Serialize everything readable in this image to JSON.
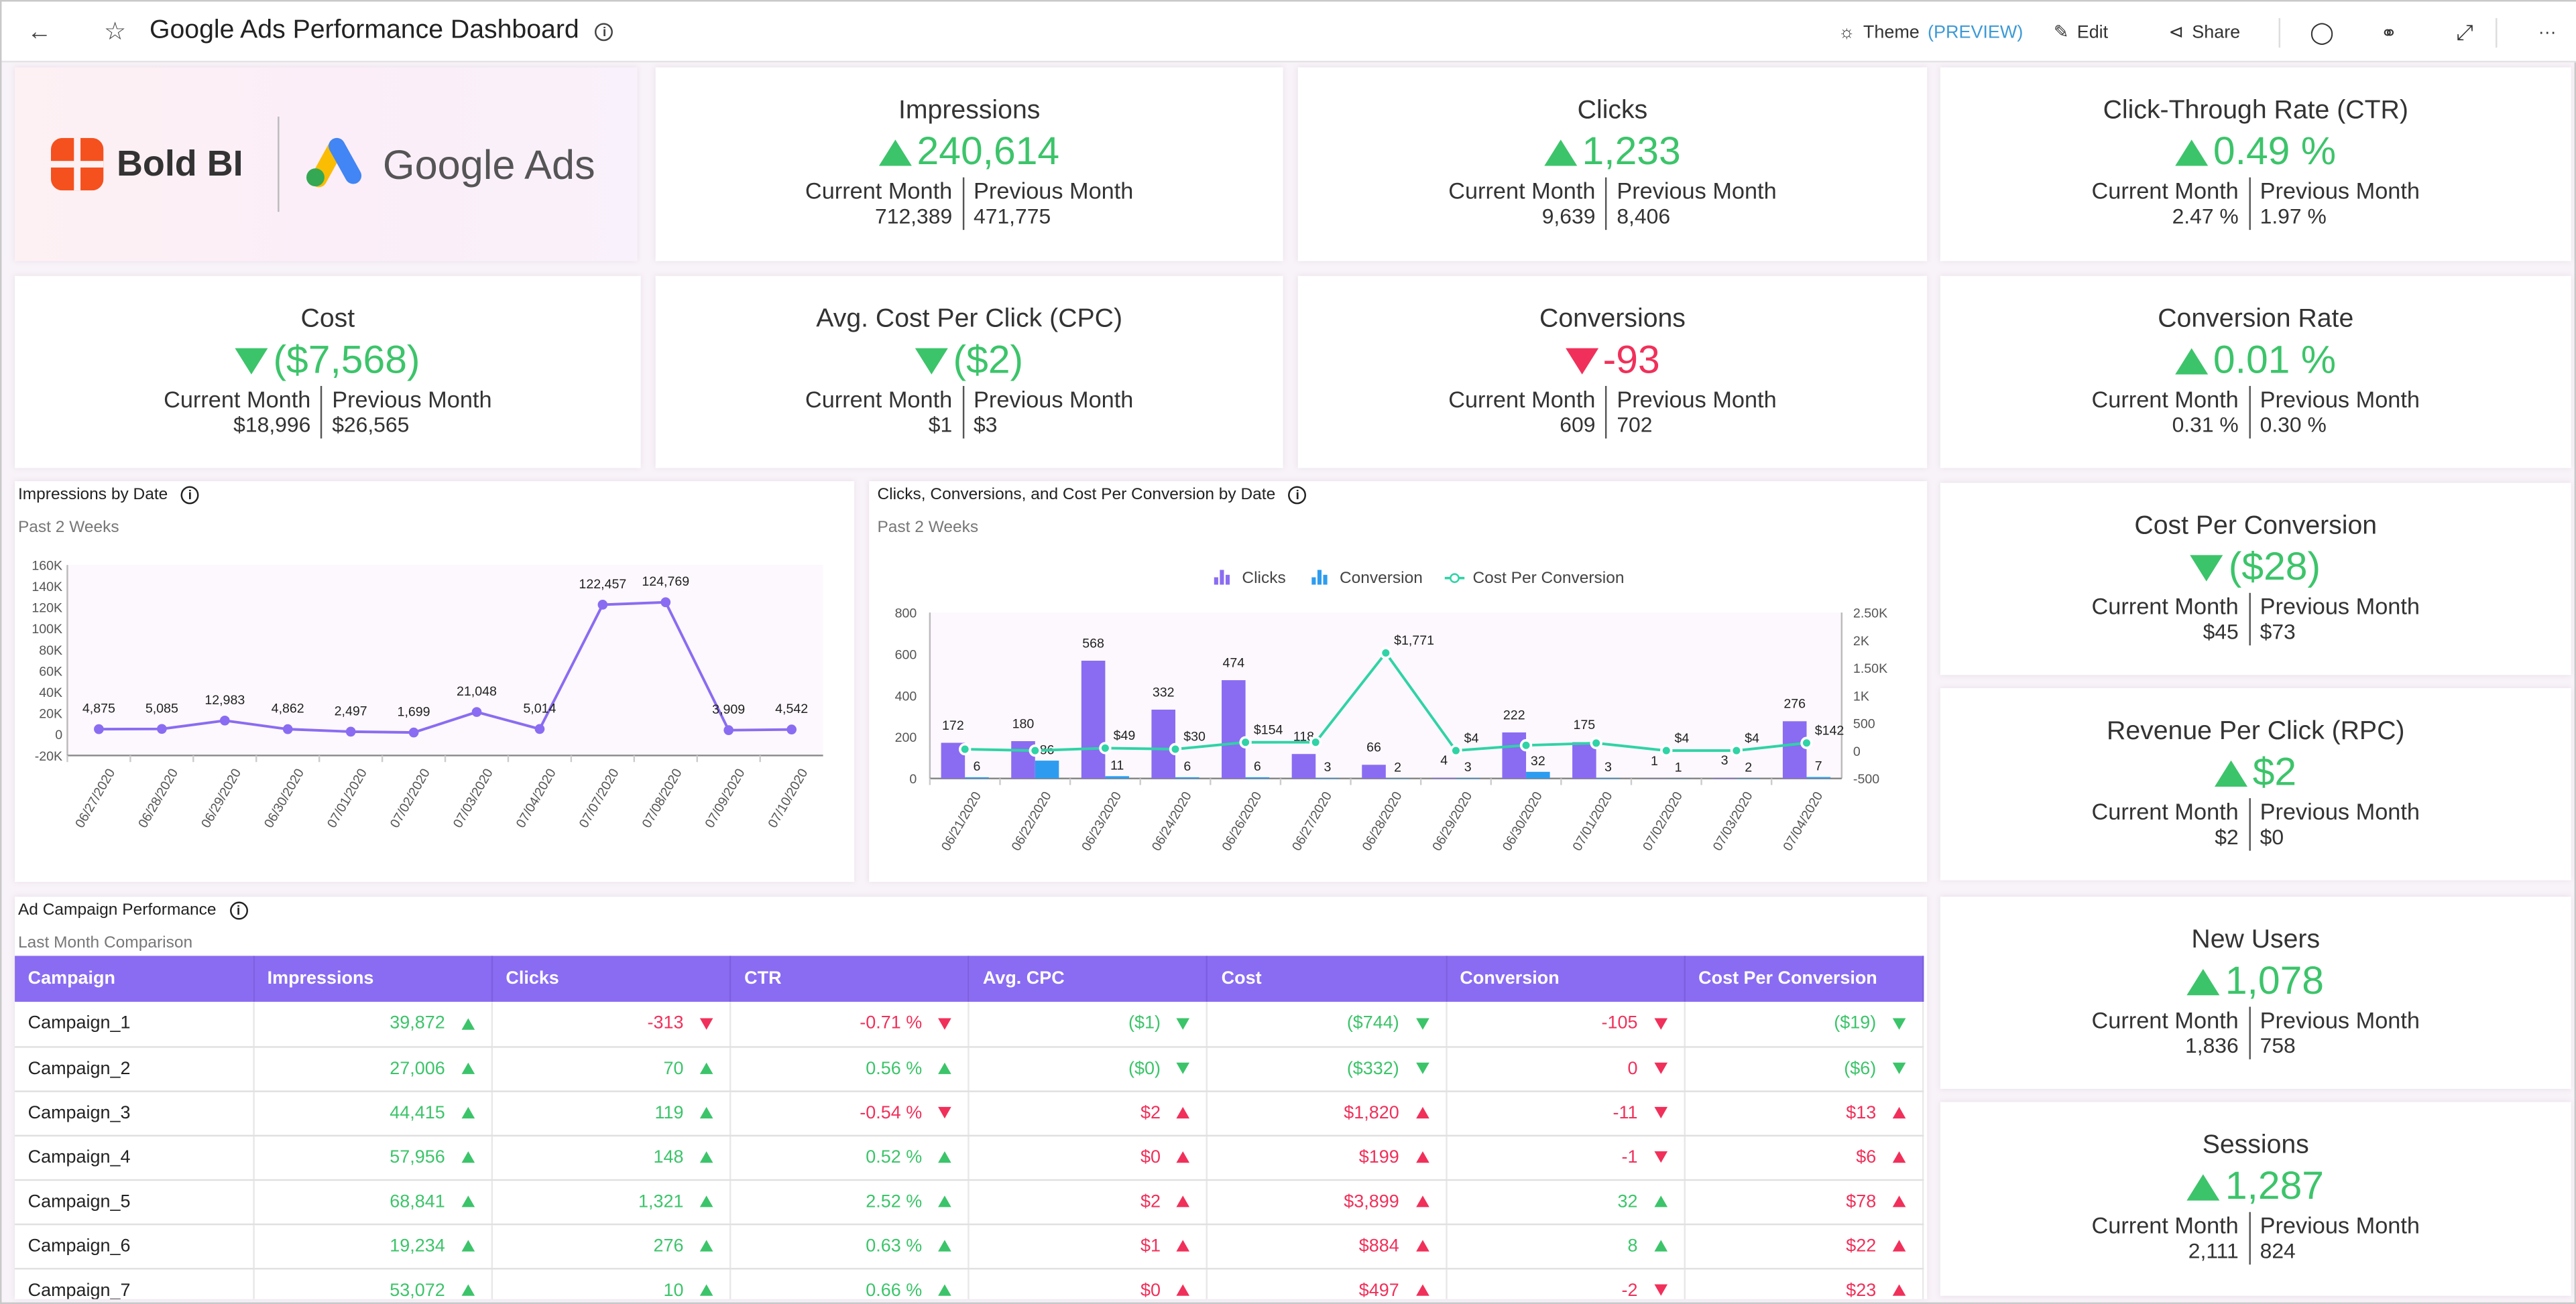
{
  "header": {
    "title": "Google Ads Performance Dashboard",
    "theme_label": "Theme",
    "theme_badge": "(PREVIEW)",
    "edit_label": "Edit",
    "share_label": "Share",
    "more_label": "···",
    "accent": "#8a6cf2"
  },
  "logo": {
    "bold_bi": "Bold BI",
    "google_ads": "Google Ads"
  },
  "kpis": [
    {
      "title": "Impressions",
      "value": "240,614",
      "trend": "up",
      "status": "good",
      "cur_label": "Current Month",
      "prev_label": "Previous Month",
      "cur": "712,389",
      "prev": "471,775"
    },
    {
      "title": "Clicks",
      "value": "1,233",
      "trend": "up",
      "status": "good",
      "cur_label": "Current Month",
      "prev_label": "Previous Month",
      "cur": "9,639",
      "prev": "8,406"
    },
    {
      "title": "Click-Through Rate (CTR)",
      "value": "0.49 %",
      "trend": "up",
      "status": "good",
      "cur_label": "Current Month",
      "prev_label": "Previous Month",
      "cur": "2.47 %",
      "prev": "1.97 %"
    },
    {
      "title": "Cost",
      "value": "($7,568)",
      "trend": "down",
      "status": "good",
      "cur_label": "Current Month",
      "prev_label": "Previous Month",
      "cur": "$18,996",
      "prev": "$26,565"
    },
    {
      "title": "Avg. Cost Per Click (CPC)",
      "value": "($2)",
      "trend": "down",
      "status": "good",
      "cur_label": "Current Month",
      "prev_label": "Previous Month",
      "cur": "$1",
      "prev": "$3"
    },
    {
      "title": "Conversions",
      "value": "-93",
      "trend": "down",
      "status": "bad",
      "cur_label": "Current Month",
      "prev_label": "Previous Month",
      "cur": "609",
      "prev": "702"
    },
    {
      "title": "Conversion Rate",
      "value": "0.01 %",
      "trend": "up",
      "status": "good",
      "cur_label": "Current Month",
      "prev_label": "Previous Month",
      "cur": "0.31 %",
      "prev": "0.30 %"
    },
    {
      "title": "Cost Per Conversion",
      "value": "($28)",
      "trend": "down",
      "status": "good",
      "cur_label": "Current Month",
      "prev_label": "Previous Month",
      "cur": "$45",
      "prev": "$73"
    },
    {
      "title": "Revenue Per Click (RPC)",
      "value": "$2",
      "trend": "up",
      "status": "good",
      "cur_label": "Current Month",
      "prev_label": "Previous Month",
      "cur": "$2",
      "prev": "$0"
    },
    {
      "title": "New Users",
      "value": "1,078",
      "trend": "up",
      "status": "good",
      "cur_label": "Current Month",
      "prev_label": "Previous Month",
      "cur": "1,836",
      "prev": "758"
    },
    {
      "title": "Sessions",
      "value": "1,287",
      "trend": "up",
      "status": "good",
      "cur_label": "Current Month",
      "prev_label": "Previous Month",
      "cur": "2,111",
      "prev": "824"
    }
  ],
  "chart_data": [
    {
      "type": "line",
      "title": "Impressions by Date",
      "subtitle": "Past 2 Weeks",
      "color": "#8a6cf2",
      "categories": [
        "06/27/2020",
        "06/28/2020",
        "06/29/2020",
        "06/30/2020",
        "07/01/2020",
        "07/02/2020",
        "07/03/2020",
        "07/04/2020",
        "07/07/2020",
        "07/08/2020",
        "07/09/2020",
        "07/10/2020"
      ],
      "values": [
        4875,
        5085,
        12983,
        4862,
        2497,
        1699,
        21048,
        5014,
        122457,
        124769,
        3909,
        4542
      ],
      "labels": [
        "4,875",
        "5,085",
        "12,983",
        "4,862",
        "2,497",
        "1,699",
        "21,048",
        "5,014",
        "122,457",
        "124,769",
        "3,909",
        "4,542"
      ],
      "ylim": [
        -20000,
        160000
      ],
      "yticks": [
        "-20K",
        "0",
        "20K",
        "40K",
        "60K",
        "80K",
        "100K",
        "120K",
        "140K",
        "160K"
      ]
    },
    {
      "type": "bar",
      "title": "Clicks, Conversions, and Cost Per Conversion by Date",
      "subtitle": "Past 2 Weeks",
      "legend_position": "top",
      "categories": [
        "06/21/2020",
        "06/22/2020",
        "06/23/2020",
        "06/24/2020",
        "06/26/2020",
        "06/27/2020",
        "06/28/2020",
        "06/29/2020",
        "06/30/2020",
        "07/01/2020",
        "07/02/2020",
        "07/03/2020",
        "07/04/2020"
      ],
      "series": [
        {
          "name": "Clicks",
          "color": "#8a6cf2",
          "axis": "left",
          "values": [
            172,
            180,
            568,
            332,
            474,
            118,
            66,
            4,
            222,
            175,
            1,
            3,
            276
          ]
        },
        {
          "name": "Conversion",
          "color": "#2d9cf0",
          "axis": "left",
          "values": [
            6,
            86,
            11,
            6,
            6,
            3,
            2,
            3,
            32,
            3,
            1,
            2,
            7
          ]
        },
        {
          "name": "Cost Per Conversion",
          "color": "#2fd3a6",
          "axis": "right",
          "type": "line",
          "values": [
            29,
            4,
            49,
            30,
            154,
            155,
            1771,
            4,
            100,
            140,
            4,
            4,
            142
          ],
          "labels": [
            "",
            "",
            "$49",
            "$30",
            "$154",
            "",
            "$1,771",
            "$4",
            "",
            "",
            "$4",
            "$4",
            "$142"
          ]
        }
      ],
      "ylim": [
        0,
        800
      ],
      "yticks": [
        "0",
        "200",
        "400",
        "600",
        "800"
      ],
      "y2lim": [
        -500,
        2500
      ],
      "y2ticks": [
        "-500",
        "0",
        "500",
        "1K",
        "1.50K",
        "2K",
        "2.50K"
      ]
    }
  ],
  "table": {
    "title": "Ad Campaign Performance",
    "subtitle": "Last Month Comparison",
    "columns": [
      "Campaign",
      "Impressions",
      "Clicks",
      "CTR",
      "Avg. CPC",
      "Cost",
      "Conversion",
      "Cost Per Conversion"
    ],
    "rows": [
      [
        "Campaign_1",
        [
          "39,872",
          "up",
          "g"
        ],
        [
          "-313",
          "down",
          "b"
        ],
        [
          "-0.71 %",
          "down",
          "b"
        ],
        [
          "($1)",
          "down",
          "g"
        ],
        [
          "($744)",
          "down",
          "g"
        ],
        [
          "-105",
          "down",
          "b"
        ],
        [
          "($19)",
          "down",
          "g"
        ]
      ],
      [
        "Campaign_2",
        [
          "27,006",
          "up",
          "g"
        ],
        [
          "70",
          "up",
          "g"
        ],
        [
          "0.56 %",
          "up",
          "g"
        ],
        [
          "($0)",
          "down",
          "g"
        ],
        [
          "($332)",
          "down",
          "g"
        ],
        [
          "0",
          "down",
          "b"
        ],
        [
          "($6)",
          "down",
          "g"
        ]
      ],
      [
        "Campaign_3",
        [
          "44,415",
          "up",
          "g"
        ],
        [
          "119",
          "up",
          "g"
        ],
        [
          "-0.54 %",
          "down",
          "b"
        ],
        [
          "$2",
          "up",
          "b"
        ],
        [
          "$1,820",
          "up",
          "b"
        ],
        [
          "-11",
          "down",
          "b"
        ],
        [
          "$13",
          "up",
          "b"
        ]
      ],
      [
        "Campaign_4",
        [
          "57,956",
          "up",
          "g"
        ],
        [
          "148",
          "up",
          "g"
        ],
        [
          "0.52 %",
          "up",
          "g"
        ],
        [
          "$0",
          "up",
          "b"
        ],
        [
          "$199",
          "up",
          "b"
        ],
        [
          "-1",
          "down",
          "b"
        ],
        [
          "$6",
          "up",
          "b"
        ]
      ],
      [
        "Campaign_5",
        [
          "68,841",
          "up",
          "g"
        ],
        [
          "1,321",
          "up",
          "g"
        ],
        [
          "2.52 %",
          "up",
          "g"
        ],
        [
          "$2",
          "up",
          "b"
        ],
        [
          "$3,899",
          "up",
          "b"
        ],
        [
          "32",
          "up",
          "g"
        ],
        [
          "$78",
          "up",
          "b"
        ]
      ],
      [
        "Campaign_6",
        [
          "19,234",
          "up",
          "g"
        ],
        [
          "276",
          "up",
          "g"
        ],
        [
          "0.63 %",
          "up",
          "g"
        ],
        [
          "$1",
          "up",
          "b"
        ],
        [
          "$884",
          "up",
          "b"
        ],
        [
          "8",
          "up",
          "g"
        ],
        [
          "$22",
          "up",
          "b"
        ]
      ],
      [
        "Campaign_7",
        [
          "53,072",
          "up",
          "g"
        ],
        [
          "10",
          "up",
          "g"
        ],
        [
          "0.66 %",
          "up",
          "g"
        ],
        [
          "$0",
          "up",
          "b"
        ],
        [
          "$497",
          "up",
          "b"
        ],
        [
          "-2",
          "down",
          "b"
        ],
        [
          "$23",
          "up",
          "b"
        ]
      ]
    ]
  }
}
